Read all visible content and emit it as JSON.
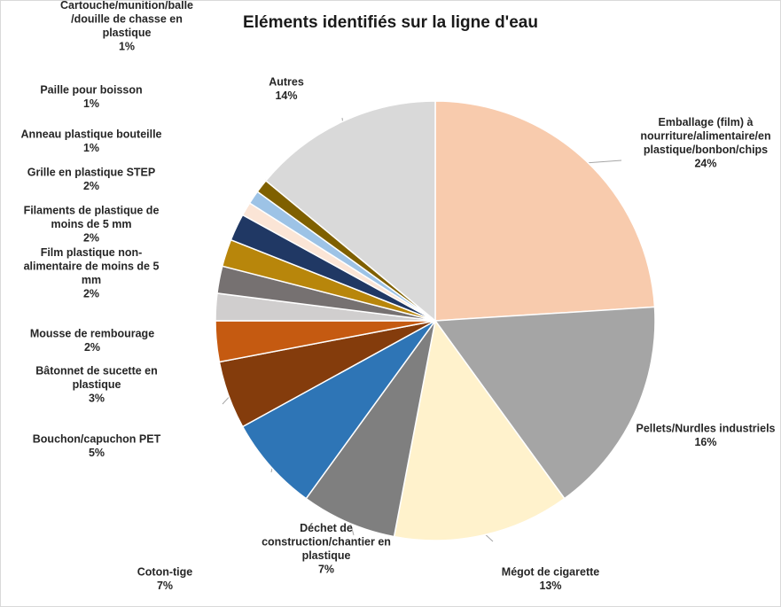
{
  "chart_data": {
    "type": "pie",
    "title": "Eléments identifiés sur la ligne d'eau",
    "legend": "none",
    "slices": [
      {
        "name": "Emballage (film) à nourriture/alimentaire/en plastique/bonbon/chips",
        "label_lines": [
          "Emballage (film) à",
          "nourriture/alimentaire/en",
          "plastique/bonbon/chips"
        ],
        "value": 24,
        "value_label": "24%",
        "color": "#f8cbad"
      },
      {
        "name": "Pellets/Nurdles industriels",
        "label_lines": [
          "Pellets/Nurdles industriels"
        ],
        "value": 16,
        "value_label": "16%",
        "color": "#a5a5a5"
      },
      {
        "name": "Mégot de cigarette",
        "label_lines": [
          "Mégot de cigarette"
        ],
        "value": 13,
        "value_label": "13%",
        "color": "#fff2cc"
      },
      {
        "name": "Déchet de construction/chantier en plastique",
        "label_lines": [
          "Déchet de",
          "construction/chantier  en",
          "plastique"
        ],
        "value": 7,
        "value_label": "7%",
        "color": "#7f7f7f"
      },
      {
        "name": "Coton-tige",
        "label_lines": [
          "Coton-tige"
        ],
        "value": 7,
        "value_label": "7%",
        "color": "#2e75b6"
      },
      {
        "name": "Bouchon/capuchon PET",
        "label_lines": [
          "Bouchon/capuchon PET"
        ],
        "value": 5,
        "value_label": "5%",
        "color": "#843c0c"
      },
      {
        "name": "Bâtonnet de sucette en plastique",
        "label_lines": [
          "Bâtonnet de sucette en",
          "plastique"
        ],
        "value": 3,
        "value_label": "3%",
        "color": "#c55a11"
      },
      {
        "name": "Mousse de rembourage",
        "label_lines": [
          "Mousse de rembourage"
        ],
        "value": 2,
        "value_label": "2%",
        "color": "#d0cece"
      },
      {
        "name": "Film plastique non-alimentaire de moins de 5 mm",
        "label_lines": [
          "Film plastique non-",
          "alimentaire de moins de 5",
          "mm"
        ],
        "value": 2,
        "value_label": "2%",
        "color": "#767171"
      },
      {
        "name": "Filaments de plastique de moins de 5 mm",
        "label_lines": [
          "Filaments de plastique de",
          "moins de 5 mm"
        ],
        "value": 2,
        "value_label": "2%",
        "color": "#b8860b"
      },
      {
        "name": "Grille en plastique STEP",
        "label_lines": [
          "Grille en plastique STEP"
        ],
        "value": 2,
        "value_label": "2%",
        "color": "#203864"
      },
      {
        "name": "Anneau plastique bouteille",
        "label_lines": [
          "Anneau plastique bouteille"
        ],
        "value": 1,
        "value_label": "1%",
        "color": "#fbe5d6"
      },
      {
        "name": "Paille pour boisson",
        "label_lines": [
          "Paille pour boisson"
        ],
        "value": 1,
        "value_label": "1%",
        "color": "#9dc3e6"
      },
      {
        "name": "Cartouche/munition/balle /douille de chasse en plastique",
        "label_lines": [
          "Cartouche/munition/balle",
          "/douille de chasse en",
          "plastique"
        ],
        "value": 1,
        "value_label": "1%",
        "color": "#7f6000"
      },
      {
        "name": "Autres",
        "label_lines": [
          "Autres"
        ],
        "value": 14,
        "value_label": "14%",
        "color": "#d9d9d9"
      }
    ]
  }
}
